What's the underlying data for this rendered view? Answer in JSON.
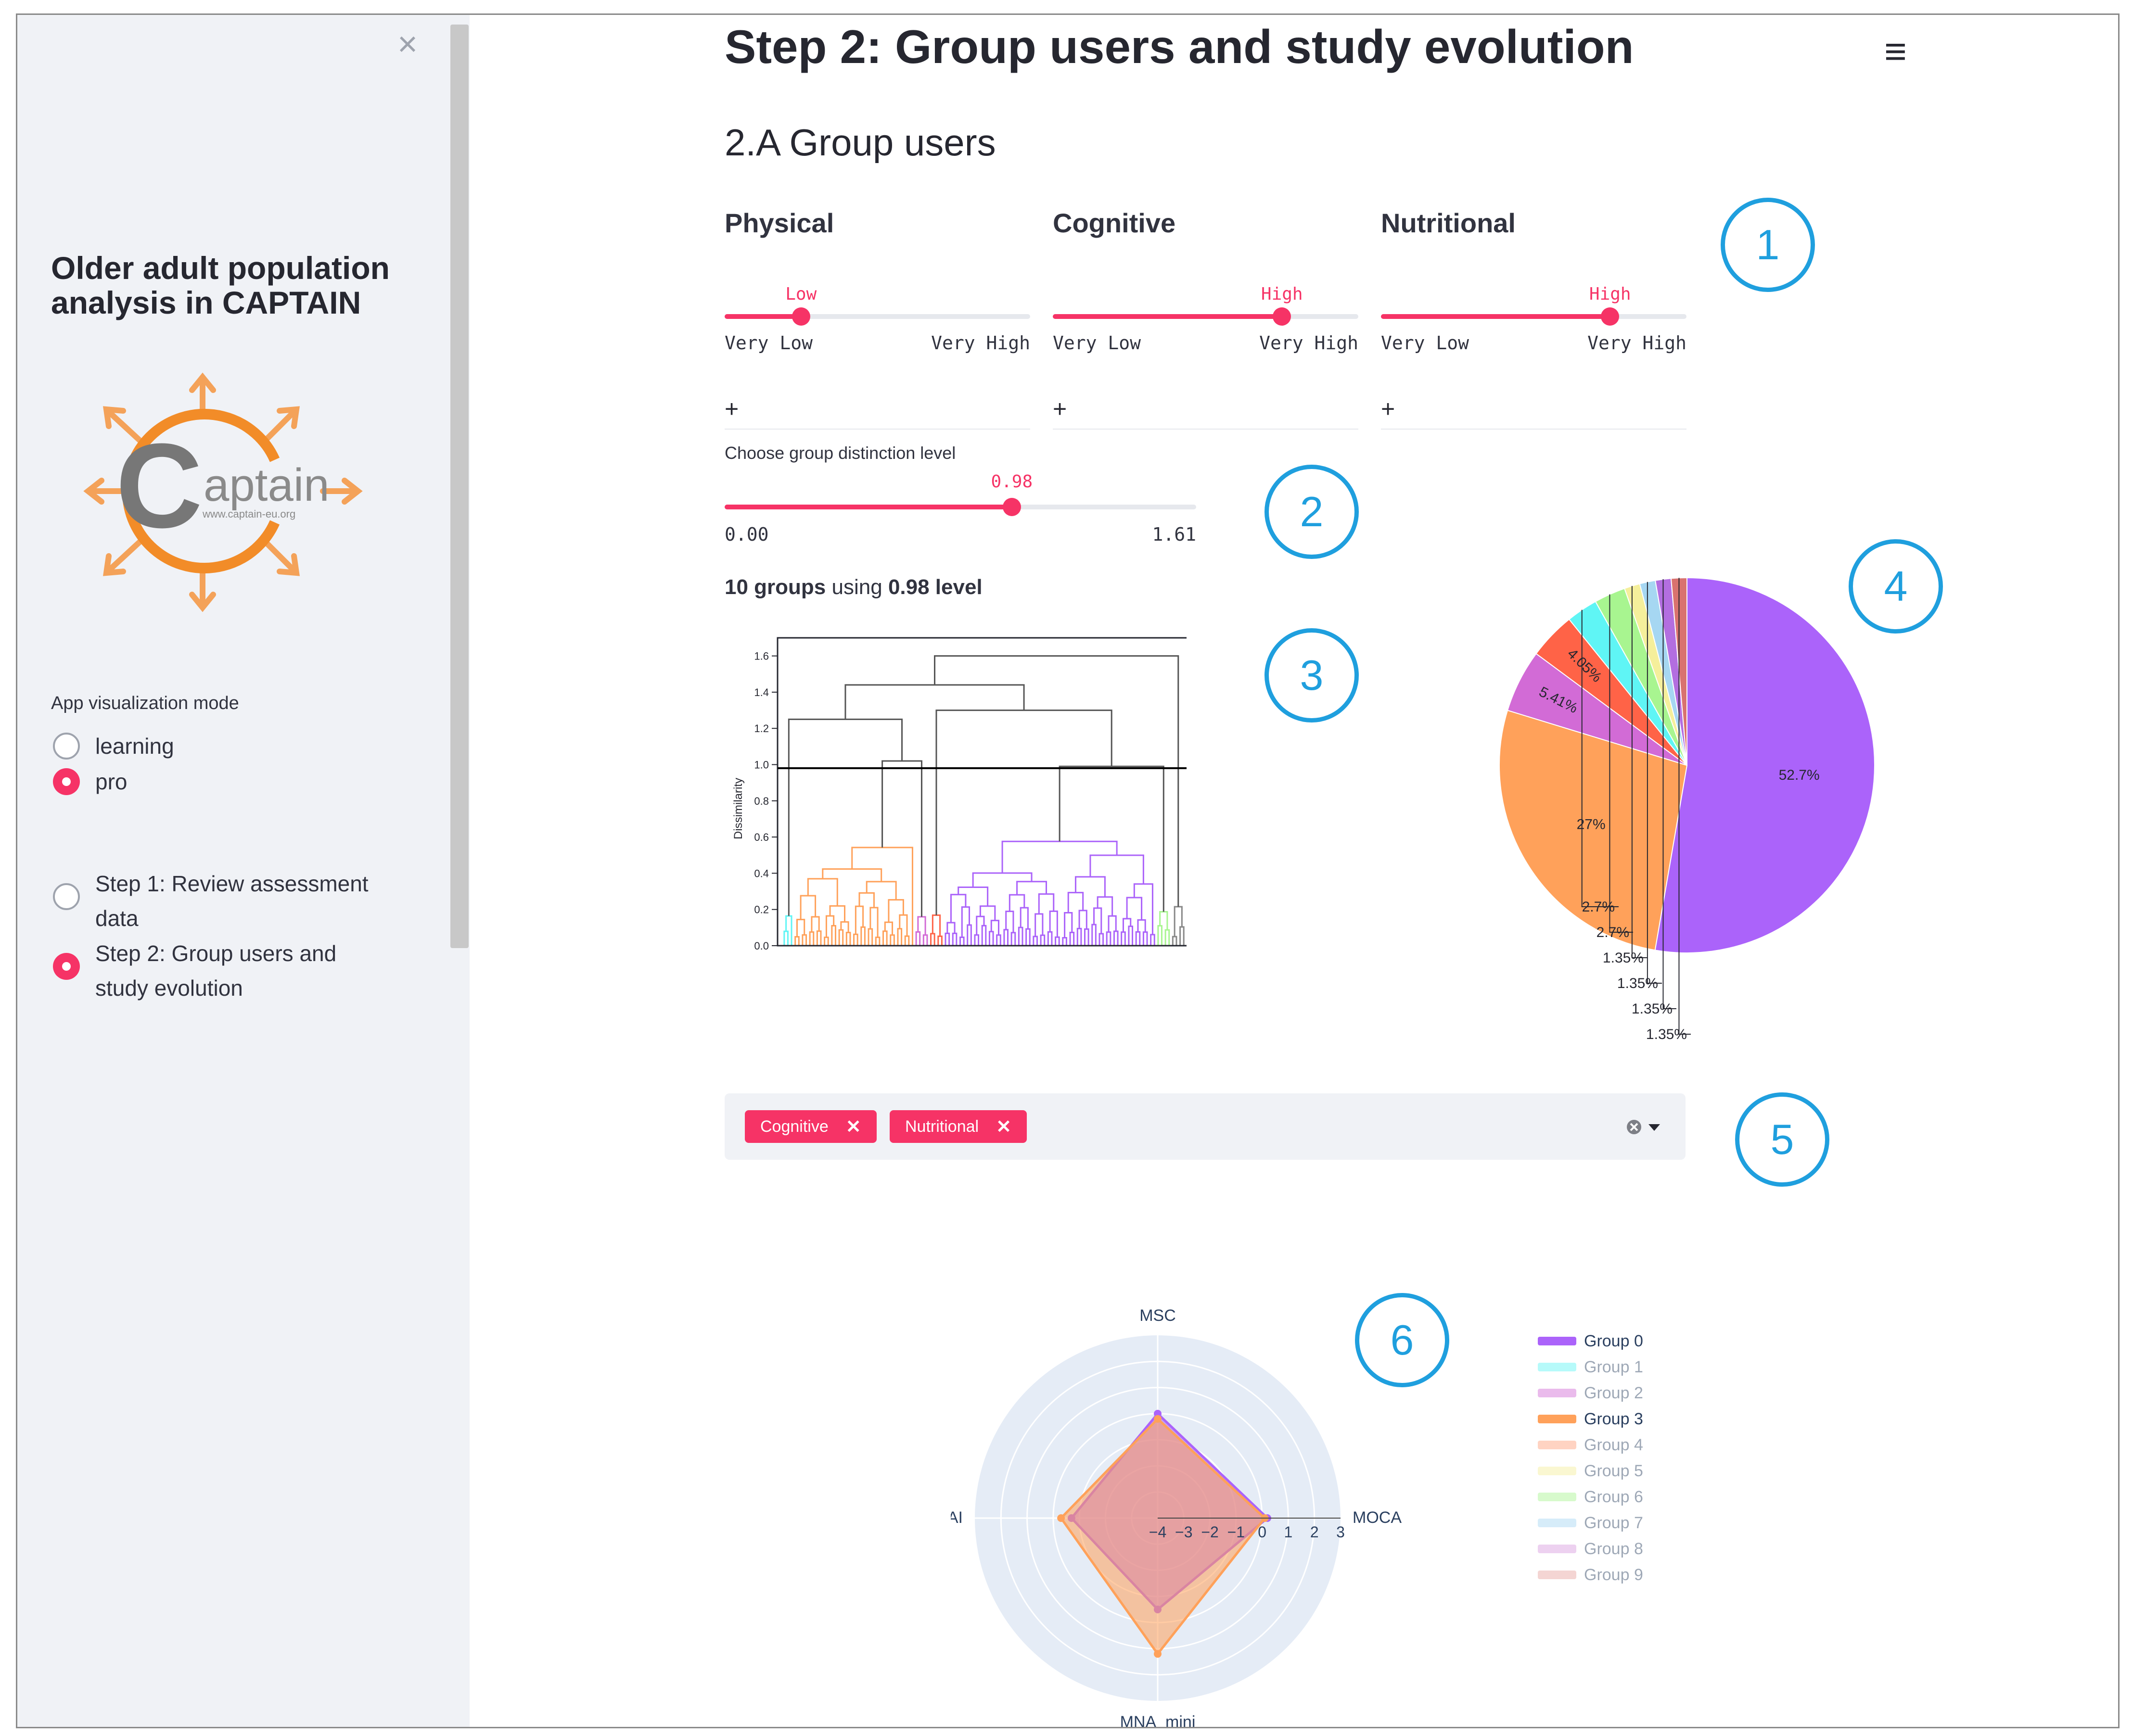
{
  "sidebar": {
    "close_icon": "×",
    "title": "Older adult population analysis in CAPTAIN",
    "logo": {
      "word": "aptain",
      "initial": "C",
      "url": "www.captain-eu.org"
    },
    "mode_label": "App visualization mode",
    "modes": [
      {
        "label": "learning",
        "selected": false
      },
      {
        "label": "pro",
        "selected": true
      }
    ],
    "steps": [
      {
        "line1": "Step 1: Review assessment",
        "line2": "data",
        "selected": false
      },
      {
        "line1": "Step 2: Group users and",
        "line2": "study evolution",
        "selected": true
      }
    ]
  },
  "header": {
    "title": "Step 2: Group users and study evolution",
    "menu_icon": "≡"
  },
  "section": {
    "title": "2.A Group users"
  },
  "colors": {
    "accent": "#f63366",
    "annotation": "#1f9fde"
  },
  "filters": [
    {
      "title": "Physical",
      "value": "Low",
      "fraction": 0.25,
      "min": "Very Low",
      "max": "Very High",
      "expander": "+"
    },
    {
      "title": "Cognitive",
      "value": "High",
      "fraction": 0.75,
      "min": "Very Low",
      "max": "Very High",
      "expander": "+"
    },
    {
      "title": "Nutritional",
      "value": "High",
      "fraction": 0.75,
      "min": "Very Low",
      "max": "Very High",
      "expander": "+"
    }
  ],
  "distinction": {
    "label": "Choose group distinction level",
    "value": "0.98",
    "min": "0.00",
    "max": "1.61",
    "numeric": 0.98,
    "numeric_max": 1.61
  },
  "summary": {
    "groups": "10 groups",
    "using": "using",
    "level": "0.98 level"
  },
  "annotations": [
    "1",
    "2",
    "3",
    "4",
    "5",
    "6"
  ],
  "multiselect": {
    "chips": [
      "Cognitive",
      "Nutritional"
    ],
    "chip_close": "✕"
  },
  "chart_data": [
    {
      "type": "dendrogram",
      "ylabel": "Dissimilarity",
      "yticks": [
        "0.0",
        "0.2",
        "0.4",
        "0.6",
        "0.8",
        "1.0",
        "1.2",
        "1.4",
        "1.6"
      ],
      "ylim": [
        0,
        1.7
      ],
      "cut_level": 0.98
    },
    {
      "type": "pie",
      "labels": [
        "52.7%",
        "27%",
        "5.41%",
        "4.05%",
        "2.7%",
        "2.7%",
        "1.35%",
        "1.35%",
        "1.35%",
        "1.35%"
      ],
      "values": [
        52.7,
        27,
        5.41,
        4.05,
        2.7,
        2.7,
        1.35,
        1.35,
        1.35,
        1.35
      ],
      "colors": [
        "#ab63fa",
        "#ffa15a",
        "#d26bd6",
        "#ff6347",
        "#5ff5f5",
        "#a8f590",
        "#f5ef9b",
        "#a6d7f2",
        "#b36ee0",
        "#d9726f"
      ]
    },
    {
      "type": "radar",
      "axes": [
        "MSC",
        "MOCA",
        "MNA_mini",
        "MAI"
      ],
      "radial_ticks": [
        "−4",
        "−3",
        "−2",
        "−1",
        "0",
        "1",
        "2",
        "3"
      ],
      "rmin": -4,
      "rmax": 3,
      "series": [
        {
          "name": "Group 0",
          "values": [
            0,
            0.2,
            -0.5,
            -0.7
          ],
          "color": "#ab63fa",
          "active": true
        },
        {
          "name": "Group 1",
          "values": [],
          "color": "#5ff5f5",
          "active": false
        },
        {
          "name": "Group 2",
          "values": [],
          "color": "#d26bd6",
          "active": false
        },
        {
          "name": "Group 3",
          "values": [
            -0.2,
            0.1,
            1.2,
            -0.3
          ],
          "color": "#ffa15a",
          "active": true
        },
        {
          "name": "Group 4",
          "values": [],
          "color": "#ffa07a",
          "active": false
        },
        {
          "name": "Group 5",
          "values": [],
          "color": "#f5ef9b",
          "active": false
        },
        {
          "name": "Group 6",
          "values": [],
          "color": "#a8f590",
          "active": false
        },
        {
          "name": "Group 7",
          "values": [],
          "color": "#a6d7f2",
          "active": false
        },
        {
          "name": "Group 8",
          "values": [],
          "color": "#d99be0",
          "active": false
        },
        {
          "name": "Group 9",
          "values": [],
          "color": "#e8a39e",
          "active": false
        }
      ]
    }
  ]
}
